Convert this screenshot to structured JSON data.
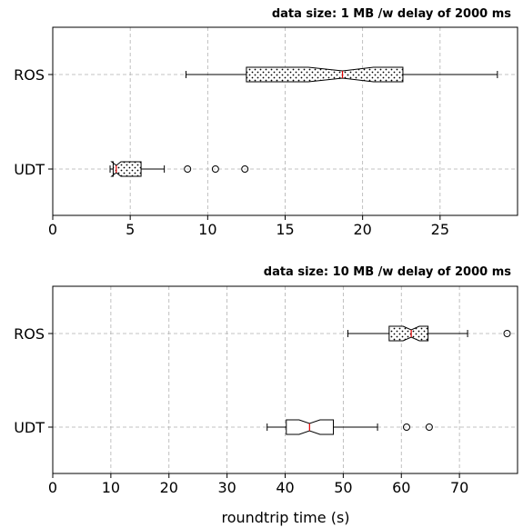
{
  "chart_data": [
    {
      "type": "boxplot",
      "orientation": "horizontal",
      "notched": true,
      "title": "data size: 1 MB /w delay of 2000 ms",
      "xlabel": "",
      "xlim": [
        0,
        30
      ],
      "xticks": [
        0,
        5,
        10,
        15,
        20,
        25
      ],
      "grid": true,
      "series": [
        {
          "name": "ROS",
          "hatch": "dots",
          "whisker_low": 8.6,
          "q1": 12.5,
          "median": 18.7,
          "q3": 22.6,
          "whisker_high": 28.7,
          "notch_low": 16.5,
          "notch_high": 20.7,
          "fliers": []
        },
        {
          "name": "UDT",
          "hatch": "dots",
          "whisker_low": 3.7,
          "q1": 3.9,
          "median": 4.1,
          "q3": 5.7,
          "whisker_high": 7.2,
          "notch_low": 3.8,
          "notch_high": 4.4,
          "fliers": [
            8.7,
            10.5,
            12.4
          ]
        }
      ]
    },
    {
      "type": "boxplot",
      "orientation": "horizontal",
      "notched": true,
      "title": "data size: 10 MB /w delay of 2000 ms",
      "xlabel": "roundtrip time (s)",
      "xlim": [
        0,
        80
      ],
      "xticks": [
        0,
        10,
        20,
        30,
        40,
        50,
        60,
        70
      ],
      "grid": true,
      "series": [
        {
          "name": "ROS",
          "hatch": "dots",
          "whisker_low": 50.8,
          "q1": 57.9,
          "median": 61.7,
          "q3": 64.6,
          "whisker_high": 71.4,
          "notch_low": 60.3,
          "notch_high": 63.1,
          "fliers": [
            78.2
          ]
        },
        {
          "name": "UDT",
          "hatch": "none",
          "whisker_low": 36.9,
          "q1": 40.2,
          "median": 44.2,
          "q3": 48.3,
          "whisker_high": 55.9,
          "notch_low": 42.4,
          "notch_high": 46.0,
          "fliers": [
            60.9,
            64.8
          ]
        }
      ]
    }
  ]
}
